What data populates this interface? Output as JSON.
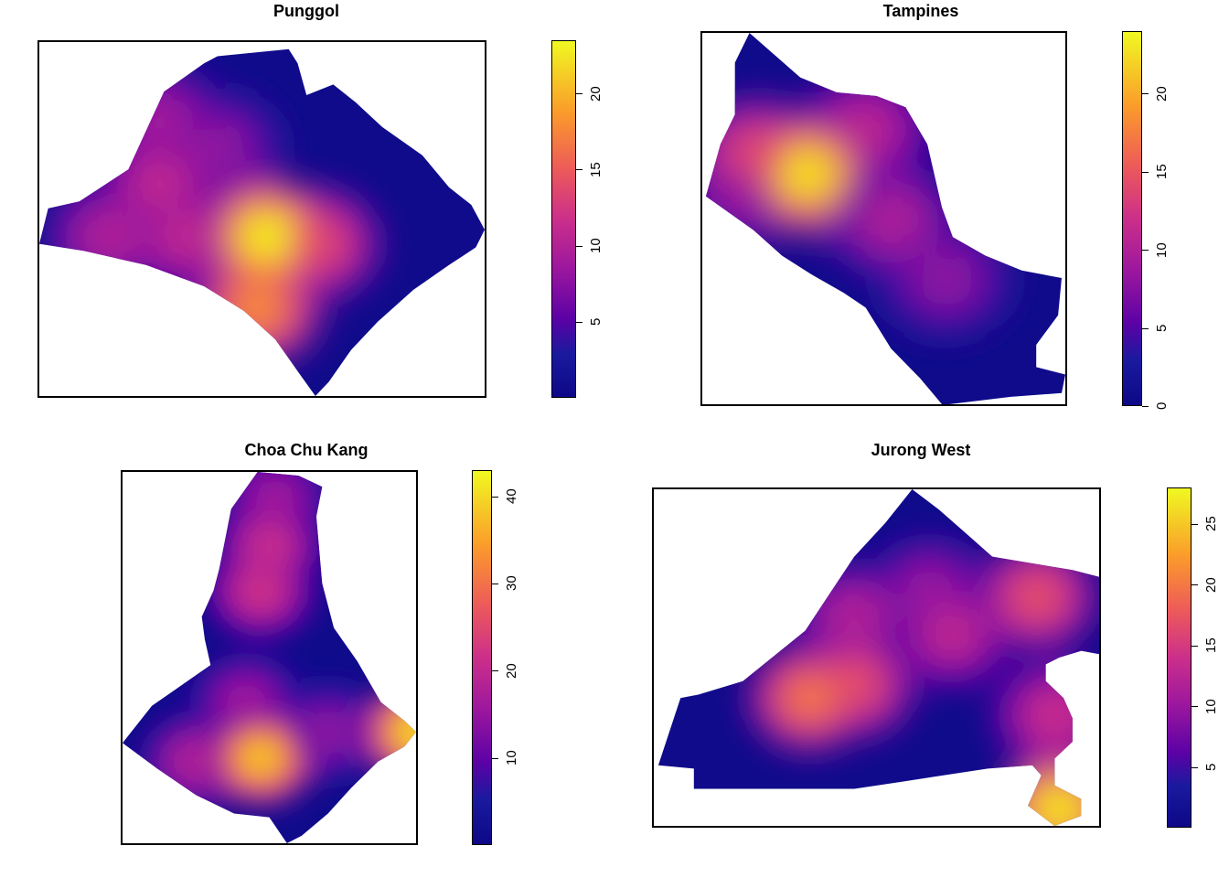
{
  "chart_data": [
    {
      "type": "heatmap",
      "title": "Punggol",
      "colorbar": {
        "ticks": [
          5,
          10,
          15,
          20
        ],
        "range": [
          0,
          23.5
        ]
      },
      "hotspots": [
        {
          "x": 0.51,
          "y": 0.55,
          "v": 23
        },
        {
          "x": 0.49,
          "y": 0.75,
          "v": 18
        },
        {
          "x": 0.62,
          "y": 0.57,
          "v": 14
        },
        {
          "x": 0.27,
          "y": 0.4,
          "v": 11
        },
        {
          "x": 0.33,
          "y": 0.55,
          "v": 11
        },
        {
          "x": 0.16,
          "y": 0.55,
          "v": 10
        },
        {
          "x": 0.27,
          "y": 0.22,
          "v": 9
        },
        {
          "x": 0.4,
          "y": 0.3,
          "v": 8
        }
      ]
    },
    {
      "type": "heatmap",
      "title": "Tampines",
      "colorbar": {
        "ticks": [
          0,
          5,
          10,
          15,
          20
        ],
        "range": [
          0,
          24
        ]
      },
      "hotspots": [
        {
          "x": 0.29,
          "y": 0.38,
          "v": 23
        },
        {
          "x": 0.15,
          "y": 0.33,
          "v": 14
        },
        {
          "x": 0.45,
          "y": 0.26,
          "v": 11
        },
        {
          "x": 0.52,
          "y": 0.5,
          "v": 10
        },
        {
          "x": 0.12,
          "y": 0.42,
          "v": 9
        },
        {
          "x": 0.67,
          "y": 0.66,
          "v": 8
        },
        {
          "x": 0.45,
          "y": 0.45,
          "v": 7
        }
      ]
    },
    {
      "type": "heatmap",
      "title": "Choa Chu Kang",
      "colorbar": {
        "ticks": [
          10,
          20,
          30,
          40
        ],
        "range": [
          0,
          43
        ]
      },
      "hotspots": [
        {
          "x": 0.47,
          "y": 0.77,
          "v": 38
        },
        {
          "x": 1.0,
          "y": 0.7,
          "v": 40
        },
        {
          "x": 0.47,
          "y": 0.32,
          "v": 22
        },
        {
          "x": 0.5,
          "y": 0.2,
          "v": 21
        },
        {
          "x": 0.25,
          "y": 0.78,
          "v": 18
        },
        {
          "x": 0.42,
          "y": 0.62,
          "v": 16
        },
        {
          "x": 0.7,
          "y": 0.7,
          "v": 14
        },
        {
          "x": 0.52,
          "y": 0.07,
          "v": 16
        }
      ]
    },
    {
      "type": "heatmap",
      "title": "Jurong West",
      "colorbar": {
        "ticks": [
          5,
          10,
          15,
          20,
          25
        ],
        "range": [
          0,
          28
        ]
      },
      "hotspots": [
        {
          "x": 0.35,
          "y": 0.62,
          "v": 20
        },
        {
          "x": 0.45,
          "y": 0.58,
          "v": 17
        },
        {
          "x": 0.86,
          "y": 0.32,
          "v": 17
        },
        {
          "x": 0.67,
          "y": 0.43,
          "v": 13
        },
        {
          "x": 0.45,
          "y": 0.38,
          "v": 12
        },
        {
          "x": 0.9,
          "y": 0.67,
          "v": 14
        },
        {
          "x": 0.91,
          "y": 0.95,
          "v": 27
        },
        {
          "x": 0.62,
          "y": 0.3,
          "v": 10
        }
      ]
    }
  ]
}
